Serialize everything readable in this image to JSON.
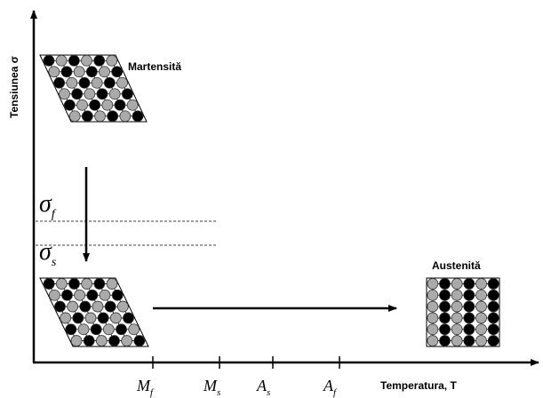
{
  "axes": {
    "y_label": "Tensiunea σ",
    "x_label": "Temperatura, T"
  },
  "phases": {
    "martensite": "Martensită",
    "austenite": "Austenită"
  },
  "stress_levels": [
    {
      "symbol": "σ",
      "subscript": "f"
    },
    {
      "symbol": "σ",
      "subscript": "s"
    }
  ],
  "temperatures": [
    {
      "symbol": "M",
      "subscript": "f"
    },
    {
      "symbol": "M",
      "subscript": "s"
    },
    {
      "symbol": "A",
      "subscript": "s"
    },
    {
      "symbol": "A",
      "subscript": "f"
    }
  ]
}
